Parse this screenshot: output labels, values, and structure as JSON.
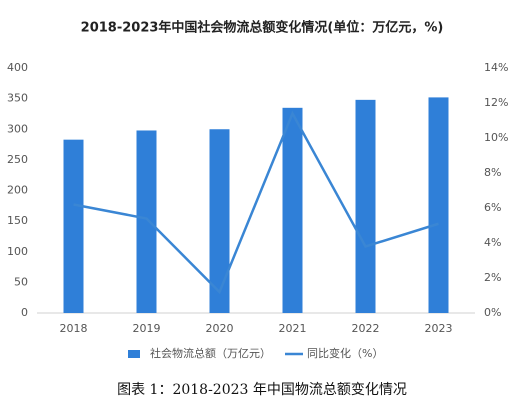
{
  "chart_data": {
    "type": "bar",
    "title": "2018-2023年中国社会物流总额变化情况(单位：万亿元，%)",
    "categories": [
      "2018",
      "2019",
      "2020",
      "2021",
      "2022",
      "2023"
    ],
    "series": [
      {
        "name": "社会物流总额（万亿元）",
        "type": "bar",
        "color": "#2f7fd8",
        "values": [
          283,
          298,
          300,
          335,
          348,
          352
        ]
      },
      {
        "name": "同比变化（%）",
        "type": "line",
        "axis": "y2",
        "color": "#3a86d4",
        "values": [
          6.2,
          5.4,
          1.2,
          11.4,
          3.8,
          5.1
        ]
      }
    ],
    "ylim": [
      0,
      400
    ],
    "yticks": [
      0,
      50,
      100,
      150,
      200,
      250,
      300,
      350,
      400
    ],
    "y2lim": [
      0,
      14
    ],
    "y2ticks": [
      {
        "value": 0,
        "label": "0%"
      },
      {
        "value": 2,
        "label": "2%"
      },
      {
        "value": 4,
        "label": "4%"
      },
      {
        "value": 6,
        "label": "6%"
      },
      {
        "value": 8,
        "label": "8%"
      },
      {
        "value": 10,
        "label": "10%"
      },
      {
        "value": 12,
        "label": "12%"
      },
      {
        "value": 14,
        "label": "14%"
      }
    ],
    "legend": "bottom",
    "caption": "图表 1：2018-2023 年中国物流总额变化情况"
  }
}
